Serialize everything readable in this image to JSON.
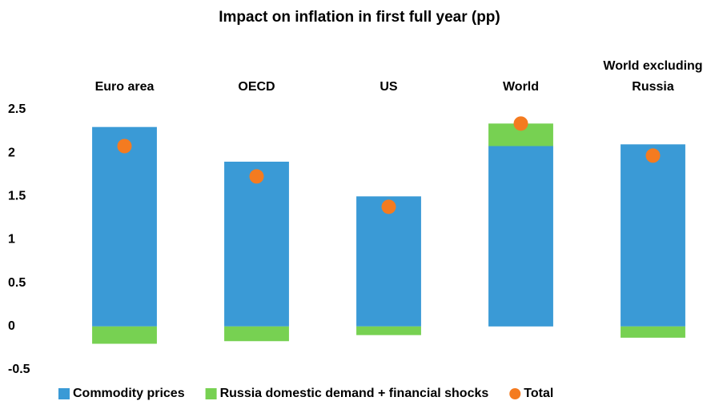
{
  "chart_data": {
    "type": "bar",
    "stacked": true,
    "title": "Impact on inflation in first full year (pp)",
    "categories": [
      "Euro area",
      "OECD",
      "US",
      "World",
      "World excluding Russia"
    ],
    "series": [
      {
        "name": "Commodity prices",
        "color": "#3a9ad6",
        "type": "bar",
        "values": [
          2.3,
          1.9,
          1.5,
          2.08,
          2.1
        ]
      },
      {
        "name": "Russia domestic demand + financial shocks",
        "color": "#77d152",
        "type": "bar",
        "values": [
          -0.2,
          -0.17,
          -0.1,
          0.26,
          -0.13
        ]
      },
      {
        "name": "Total",
        "color": "#f47b20",
        "type": "scatter",
        "values": [
          2.08,
          1.73,
          1.38,
          2.34,
          1.97
        ]
      }
    ],
    "ylim": [
      -0.5,
      2.5
    ],
    "yticks": [
      {
        "value": -0.5,
        "label": "-0.5"
      },
      0,
      0.5,
      1,
      1.5,
      2,
      2.5
    ],
    "grid": false,
    "legend": "bottom"
  }
}
